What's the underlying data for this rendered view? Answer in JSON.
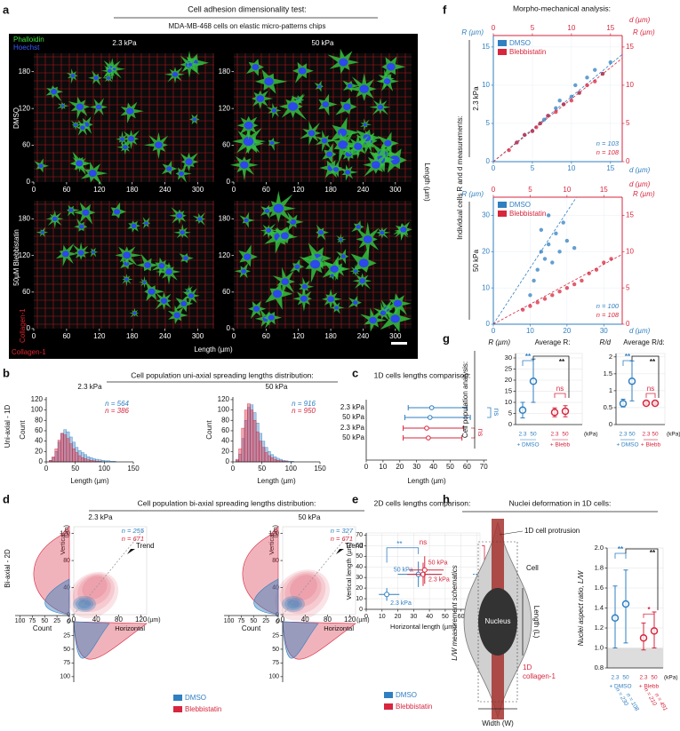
{
  "colors": {
    "dmso": "#2f7fc1",
    "blebb": "#d7263d"
  },
  "a": {
    "letter": "a",
    "title": "Cell adhesion dimensionality test:",
    "subtitle": "MDA-MB-468 cells on elastic micro-patterns chips",
    "legend": [
      "Phalloidin",
      "Hoechst"
    ],
    "columns": [
      "2.3 kPa",
      "50 kPa"
    ],
    "rows": [
      "DMSO",
      "50µM  Blebbistatin"
    ],
    "xlim": [
      0,
      330
    ],
    "xticks": [
      0,
      60,
      120,
      180,
      240,
      300
    ],
    "ylim": [
      0,
      210
    ],
    "yticks": [
      0,
      60,
      120,
      180
    ],
    "x_label": "Length (µm)",
    "y_label": "Length (µm)",
    "pattern_label": "Collagen-1"
  },
  "b": {
    "letter": "b",
    "title": "Cell population uni-axial spreading lengths distribution:",
    "row_label": "Uni-axial - 1D",
    "y_label": "Count",
    "x_label": "Length (µm)",
    "xlim": [
      0,
      150
    ],
    "xticks": [
      0,
      50,
      100,
      150
    ],
    "ylim": [
      0,
      125
    ],
    "yticks": [
      0,
      20,
      40,
      60,
      80,
      100,
      120
    ],
    "bins": [
      0,
      5,
      10,
      15,
      20,
      25,
      30,
      35,
      40,
      45,
      50,
      55,
      60,
      65,
      70,
      75,
      80,
      85,
      90,
      95,
      100,
      105,
      110,
      115,
      120
    ],
    "plots": [
      {
        "title": "2.3 kPa",
        "n": [
          "n = 564",
          "n = 386"
        ],
        "series": [
          {
            "name": "DMSO",
            "counts": [
              0,
              2,
              8,
              20,
              38,
              55,
              62,
              58,
              48,
              38,
              28,
              22,
              18,
              14,
              10,
              8,
              6,
              5,
              4,
              3,
              2,
              2,
              1,
              1
            ]
          },
          {
            "name": "Blebbistatin",
            "counts": [
              0,
              3,
              10,
              25,
              42,
              55,
              52,
              45,
              35,
              25,
              18,
              12,
              8,
              6,
              4,
              3,
              2,
              1,
              1,
              0,
              0,
              0,
              0,
              0
            ]
          }
        ]
      },
      {
        "title": "50 kPa",
        "n": [
          "n = 916",
          "n = 950"
        ],
        "series": [
          {
            "name": "DMSO",
            "counts": [
              0,
              3,
              15,
              45,
              80,
              105,
              110,
              95,
              75,
              55,
              40,
              28,
              20,
              14,
              10,
              7,
              5,
              3,
              2,
              1,
              1,
              0,
              0,
              0
            ]
          },
          {
            "name": "Blebbistatin",
            "counts": [
              0,
              5,
              25,
              65,
              100,
              112,
              100,
              80,
              58,
              40,
              28,
              18,
              12,
              8,
              5,
              3,
              2,
              1,
              1,
              0,
              0,
              0,
              0,
              0
            ]
          }
        ]
      }
    ]
  },
  "c": {
    "letter": "c",
    "title": "1D cells lengths comparison:",
    "x_label": "Length (µm)",
    "xlim": [
      0,
      72
    ],
    "xticks": [
      0,
      10,
      20,
      30,
      40,
      50,
      60,
      70
    ],
    "rows": [
      {
        "label": "2.3 kPa",
        "group": "dmso",
        "mean": 39,
        "low": 25,
        "high": 60
      },
      {
        "label": "50 kPa",
        "group": "dmso",
        "mean": 38,
        "low": 23,
        "high": 62
      },
      {
        "label": "2.3 kPa",
        "group": "blebb",
        "mean": 36,
        "low": 22,
        "high": 58
      },
      {
        "label": "50 kPa",
        "group": "blebb",
        "mean": 37,
        "low": 22,
        "high": 57
      }
    ],
    "significance": [
      "ns",
      "ns"
    ]
  },
  "d": {
    "letter": "d",
    "title": "Cell population bi-axial spreading lengths distribution:",
    "row_label": "Bi-axial - 2D",
    "plots": [
      {
        "title": "2.3 kPa",
        "n": [
          "n = 255",
          "n = 671"
        ]
      },
      {
        "title": "50 kPa",
        "n": [
          "n = 327",
          "n = 671"
        ]
      }
    ],
    "xlim": [
      0,
      130
    ],
    "xticks": [
      0,
      40,
      80,
      120
    ],
    "ylim": [
      0,
      130
    ],
    "yticks": [
      0,
      40,
      80,
      120
    ],
    "unit": "(µm)",
    "count_lim": [
      0,
      110
    ],
    "count_ticks": [
      0,
      25,
      50,
      75,
      100
    ],
    "count_label": "Count",
    "x_label": "Horizontal",
    "y_label": "Vertical",
    "trend": "Trend",
    "legend": [
      "DMSO",
      "Blebbistatin"
    ]
  },
  "e": {
    "letter": "e",
    "title": "2D cells lengths comparison:",
    "x_label": "Horizontal length (µm)",
    "y_label": "Vertical length (µm)",
    "xlim": [
      0,
      72
    ],
    "xticks": [
      0,
      10,
      20,
      30,
      40,
      50,
      60,
      70
    ],
    "ylim": [
      0,
      72
    ],
    "yticks": [
      0,
      10,
      20,
      30,
      40,
      50,
      60,
      70
    ],
    "points": [
      {
        "label": "2.3 kPa",
        "group": "dmso",
        "x": 13,
        "y": 14,
        "x_range": [
          8,
          21
        ],
        "y_range": [
          8,
          20
        ]
      },
      {
        "label": "50 kPa",
        "group": "dmso",
        "x": 33,
        "y": 33,
        "x_range": [
          20,
          47
        ],
        "y_range": [
          21,
          45
        ]
      },
      {
        "label": "2.3 kPa",
        "group": "blebb",
        "x": 36,
        "y": 33,
        "x_range": [
          26,
          48
        ],
        "y_range": [
          22,
          44
        ]
      },
      {
        "label": "50 kPa",
        "group": "blebb",
        "x": 37,
        "y": 37,
        "x_range": [
          27,
          49
        ],
        "y_range": [
          24,
          50
        ]
      }
    ],
    "significance": [
      "**",
      "ns",
      "ns",
      "**"
    ],
    "legend": [
      "DMSO",
      "Blebbistatin"
    ]
  },
  "f": {
    "letter": "f",
    "title": "Morpho-mechanical analysis:",
    "y_label": "Individual cells R and d measurements:",
    "R_label": "R (µm)",
    "d_label": "d (µm)",
    "legend": [
      "DMSO",
      "Blebbistatin"
    ],
    "plots": [
      {
        "row": "2.3 kPa",
        "blue_lim": [
          0,
          16.5
        ],
        "blue_ticks": [
          0,
          5,
          10,
          15
        ],
        "red_lim": [
          0,
          16.5
        ],
        "red_ticks": [
          0,
          5,
          10,
          15
        ],
        "n": [
          "n = 103",
          "n = 108"
        ],
        "dmso": {
          "x": [
            3,
            4,
            5,
            6,
            6.5,
            7,
            8,
            8.5,
            9,
            10,
            10.5,
            11,
            12,
            13,
            14,
            15
          ],
          "y": [
            2.5,
            3.5,
            4,
            5,
            5.5,
            6,
            7,
            8,
            7.5,
            8.5,
            10,
            9,
            11,
            12,
            11.5,
            13
          ]
        },
        "blebb": {
          "x": [
            2,
            3,
            4,
            5,
            5.5,
            6,
            7,
            8,
            9,
            10,
            11,
            12,
            13,
            14
          ],
          "y": [
            1.5,
            2.5,
            3.5,
            4,
            4.5,
            5,
            6,
            6.5,
            7.5,
            8,
            9,
            10,
            10.5,
            11.5
          ]
        }
      },
      {
        "row": "50 kPa",
        "blue_lim": [
          0,
          35
        ],
        "blue_ticks": [
          0,
          10,
          20,
          30
        ],
        "red_lim": [
          0,
          17.5
        ],
        "red_ticks": [
          0,
          5,
          10,
          15
        ],
        "n": [
          "n = 100",
          "n = 108"
        ],
        "dmso": {
          "x": [
            10,
            11,
            12,
            13,
            13,
            14,
            15,
            15,
            16,
            17,
            18,
            19,
            20,
            22
          ],
          "y": [
            8,
            12,
            15,
            20,
            26,
            18,
            22,
            30,
            17,
            25,
            20,
            28,
            23,
            21
          ]
        },
        "blebb": {
          "x": [
            4,
            5,
            6,
            7,
            8,
            9,
            10,
            11,
            12,
            13,
            14,
            15,
            16
          ],
          "y": [
            2,
            2.5,
            3,
            3.5,
            4,
            4.5,
            5,
            5.5,
            6,
            7,
            7.5,
            8.5,
            9
          ]
        }
      }
    ]
  },
  "g": {
    "letter": "g",
    "title": "Cell population analysis:",
    "x_labels": [
      "2.3",
      "50"
    ],
    "unit": "(kPa)",
    "group_labels": [
      "+ DMSO",
      "+ Blebb"
    ],
    "plots": [
      {
        "title": "Average R:",
        "y_label": "R (µm)",
        "ylim": [
          0,
          32
        ],
        "yticks": [
          0,
          5,
          10,
          15,
          20,
          25,
          30
        ],
        "significance": [
          "**",
          "**",
          "ns"
        ],
        "groups": [
          {
            "group": "dmso",
            "means": [
              6.5,
              19.5
            ],
            "lows": [
              3,
              10
            ],
            "highs": [
              10,
              29.5
            ]
          },
          {
            "group": "blebb",
            "means": [
              5.5,
              6
            ],
            "lows": [
              3.5,
              3.5
            ],
            "highs": [
              7.5,
              8.5
            ]
          }
        ]
      },
      {
        "title": "Average R/d:",
        "y_label": "R/d",
        "ylim": [
          0,
          2.1
        ],
        "yticks": [
          0,
          0.5,
          1,
          1.5,
          2
        ],
        "significance": [
          "**",
          "**",
          "ns"
        ],
        "groups": [
          {
            "group": "dmso",
            "means": [
              0.62,
              1.28
            ],
            "lows": [
              0.52,
              0.7
            ],
            "highs": [
              0.75,
              1.88
            ]
          },
          {
            "group": "blebb",
            "means": [
              0.63,
              0.63
            ],
            "lows": [
              0.6,
              0.6
            ],
            "highs": [
              0.66,
              0.66
            ]
          }
        ]
      }
    ]
  },
  "h": {
    "letter": "h",
    "title": "Nuclei deformation in 1D cells:",
    "schematic": {
      "y_label": "L/W measurement schematics",
      "protrusion": "1D cell protrusion",
      "cell": "Cell",
      "nucleus": "Nucleus",
      "length": "Length (L)",
      "pattern": [
        "1D",
        "collagen-1"
      ],
      "width": "Width (W)"
    },
    "chart": {
      "y_label": "Nuclei aspect ratio, L/W",
      "ylim": [
        0.8,
        2.0
      ],
      "yticks": [
        0.8,
        {
          "value": 1,
          "label": "1.0"
        },
        1.2,
        1.4,
        1.6,
        1.8,
        {
          "value": 2,
          "label": "2.0"
        }
      ],
      "x_labels": [
        "2.3",
        "50"
      ],
      "unit": "(kPa)",
      "group_labels": [
        "+ DMSO",
        "+ Blebb"
      ],
      "groups": [
        {
          "group": "dmso",
          "means": [
            1.3,
            1.44
          ],
          "lows": [
            1.0,
            1.05
          ],
          "highs": [
            1.62,
            1.78
          ],
          "n": [
            "n = 230",
            "n = 108"
          ]
        },
        {
          "group": "blebb",
          "means": [
            1.1,
            1.17
          ],
          "lows": [
            0.98,
            1.0
          ],
          "highs": [
            1.25,
            1.36
          ],
          "n": [
            "n = 210",
            "n = 491"
          ]
        }
      ],
      "significance": [
        "**",
        "**",
        "*"
      ]
    }
  }
}
